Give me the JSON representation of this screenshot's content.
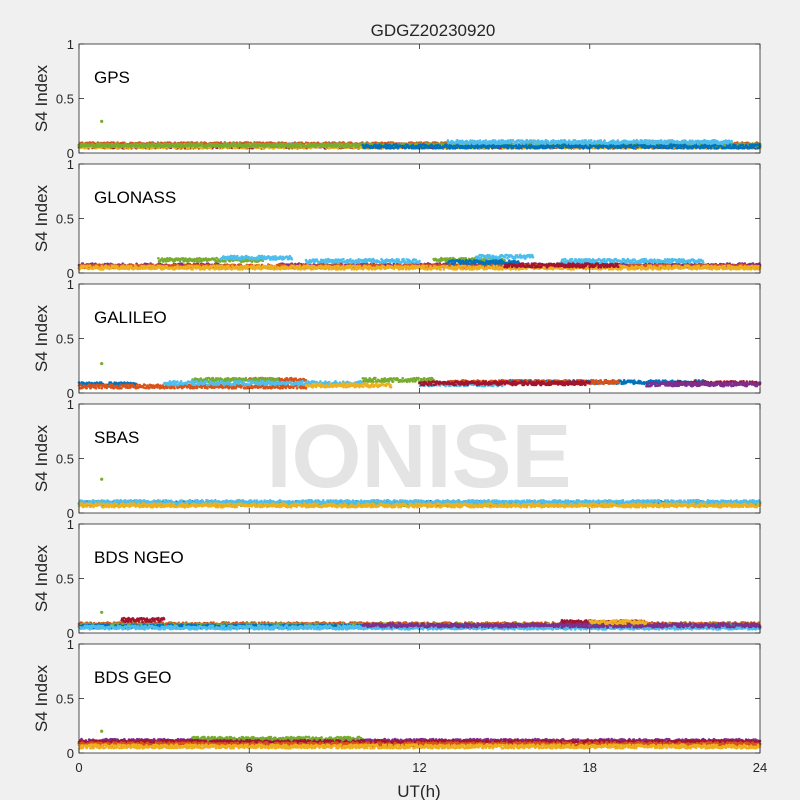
{
  "figure": {
    "title": "GDGZ20230920",
    "xlabel": "UT(h)",
    "ylabel": "S4 Index",
    "watermark": "IONISE",
    "xticks": [
      "0",
      "6",
      "12",
      "18",
      "24"
    ],
    "yticks": [
      "0",
      "0.5",
      "1"
    ]
  },
  "colors": {
    "background": "#f0f0f0",
    "axes_bg": "#ffffff",
    "series": [
      "#0072bd",
      "#d95319",
      "#edb120",
      "#7e2f8e",
      "#77ac30",
      "#4dbeee",
      "#a2142f"
    ]
  },
  "chart_data": [
    {
      "type": "scatter",
      "panel_label": "GPS",
      "xlim": [
        0,
        24
      ],
      "ylim": [
        0,
        1
      ],
      "baseline": 0.07,
      "outliers": [
        {
          "x": 0.8,
          "y": 0.29
        }
      ],
      "series": [
        {
          "color_index": 3,
          "segments": [
            [
              0.0,
              24.0,
              0.07
            ]
          ]
        },
        {
          "color_index": 6,
          "segments": [
            [
              0.0,
              24.0,
              0.06
            ]
          ]
        },
        {
          "color_index": 1,
          "segments": [
            [
              0.0,
              24.0,
              0.08
            ]
          ]
        },
        {
          "color_index": 2,
          "segments": [
            [
              0.0,
              24.0,
              0.06
            ]
          ]
        },
        {
          "color_index": 4,
          "segments": [
            [
              0.0,
              24.0,
              0.07
            ]
          ]
        },
        {
          "color_index": 0,
          "segments": [
            [
              10.0,
              24.0,
              0.06
            ]
          ]
        },
        {
          "color_index": 5,
          "segments": [
            [
              13.0,
              23.0,
              0.1
            ]
          ]
        }
      ]
    },
    {
      "type": "scatter",
      "panel_label": "GLONASS",
      "xlim": [
        0,
        24
      ],
      "ylim": [
        0,
        1
      ],
      "baseline": 0.07,
      "outliers": [],
      "series": [
        {
          "color_index": 3,
          "segments": [
            [
              0.0,
              5.0,
              0.07
            ],
            [
              7.0,
              24.0,
              0.07
            ]
          ]
        },
        {
          "color_index": 1,
          "segments": [
            [
              0.0,
              24.0,
              0.06
            ]
          ]
        },
        {
          "color_index": 2,
          "segments": [
            [
              0.0,
              24.0,
              0.05
            ]
          ]
        },
        {
          "color_index": 4,
          "segments": [
            [
              2.8,
              6.5,
              0.12
            ],
            [
              12.5,
              15.0,
              0.12
            ]
          ]
        },
        {
          "color_index": 5,
          "segments": [
            [
              5.0,
              7.5,
              0.14
            ],
            [
              8.0,
              12.0,
              0.11
            ],
            [
              14.0,
              16.0,
              0.15
            ],
            [
              17.0,
              22.0,
              0.11
            ]
          ]
        },
        {
          "color_index": 0,
          "segments": [
            [
              13.0,
              15.5,
              0.1
            ]
          ]
        },
        {
          "color_index": 6,
          "segments": [
            [
              15.0,
              19.0,
              0.07
            ]
          ]
        }
      ]
    },
    {
      "type": "scatter",
      "panel_label": "GALILEO",
      "xlim": [
        0,
        24
      ],
      "ylim": [
        0,
        1
      ],
      "baseline": 0.07,
      "outliers": [
        {
          "x": 0.8,
          "y": 0.27
        }
      ],
      "series": [
        {
          "color_index": 0,
          "segments": [
            [
              0.0,
              2.0,
              0.08
            ],
            [
              15.0,
              22.0,
              0.1
            ]
          ]
        },
        {
          "color_index": 1,
          "segments": [
            [
              0.0,
              8.0,
              0.06
            ],
            [
              6.0,
              8.0,
              0.12
            ],
            [
              13.0,
              19.0,
              0.1
            ]
          ]
        },
        {
          "color_index": 4,
          "segments": [
            [
              4.0,
              7.0,
              0.12
            ],
            [
              10.0,
              12.5,
              0.12
            ]
          ]
        },
        {
          "color_index": 5,
          "segments": [
            [
              3.0,
              10.0,
              0.09
            ],
            [
              12.0,
              15.0,
              0.08
            ]
          ]
        },
        {
          "color_index": 6,
          "segments": [
            [
              12.0,
              18.0,
              0.09
            ],
            [
              21.0,
              24.0,
              0.09
            ]
          ]
        },
        {
          "color_index": 3,
          "segments": [
            [
              20.0,
              24.0,
              0.08
            ]
          ]
        },
        {
          "color_index": 2,
          "segments": [
            [
              8.0,
              11.0,
              0.07
            ]
          ]
        }
      ]
    },
    {
      "type": "scatter",
      "panel_label": "SBAS",
      "xlim": [
        0,
        24
      ],
      "ylim": [
        0,
        1
      ],
      "baseline": 0.08,
      "outliers": [
        {
          "x": 0.8,
          "y": 0.31
        }
      ],
      "series": [
        {
          "color_index": 0,
          "segments": [
            [
              0.0,
              24.0,
              0.09
            ]
          ]
        },
        {
          "color_index": 4,
          "segments": [
            [
              0.0,
              24.0,
              0.08
            ]
          ]
        },
        {
          "color_index": 5,
          "segments": [
            [
              0.0,
              24.0,
              0.1
            ]
          ]
        },
        {
          "color_index": 2,
          "segments": [
            [
              0.0,
              24.0,
              0.07
            ]
          ]
        }
      ]
    },
    {
      "type": "scatter",
      "panel_label": "BDS NGEO",
      "xlim": [
        0,
        24
      ],
      "ylim": [
        0,
        1
      ],
      "baseline": 0.07,
      "outliers": [
        {
          "x": 0.8,
          "y": 0.19
        }
      ],
      "series": [
        {
          "color_index": 1,
          "segments": [
            [
              0.0,
              24.0,
              0.08
            ]
          ]
        },
        {
          "color_index": 4,
          "segments": [
            [
              0.0,
              24.0,
              0.07
            ]
          ]
        },
        {
          "color_index": 0,
          "segments": [
            [
              0.0,
              24.0,
              0.06
            ]
          ]
        },
        {
          "color_index": 5,
          "segments": [
            [
              0.0,
              24.0,
              0.05
            ]
          ]
        },
        {
          "color_index": 6,
          "segments": [
            [
              1.5,
              3.0,
              0.12
            ],
            [
              17.0,
              20.0,
              0.1
            ]
          ]
        },
        {
          "color_index": 3,
          "segments": [
            [
              10.0,
              24.0,
              0.07
            ]
          ]
        },
        {
          "color_index": 2,
          "segments": [
            [
              18.0,
              20.0,
              0.1
            ]
          ]
        }
      ]
    },
    {
      "type": "scatter",
      "panel_label": "BDS GEO",
      "xlim": [
        0,
        24
      ],
      "ylim": [
        0,
        1
      ],
      "baseline": 0.08,
      "outliers": [
        {
          "x": 0.8,
          "y": 0.2
        }
      ],
      "series": [
        {
          "color_index": 3,
          "segments": [
            [
              0.0,
              24.0,
              0.11
            ]
          ]
        },
        {
          "color_index": 4,
          "segments": [
            [
              4.0,
              10.0,
              0.13
            ]
          ]
        },
        {
          "color_index": 6,
          "segments": [
            [
              0.0,
              24.0,
              0.1
            ]
          ]
        },
        {
          "color_index": 1,
          "segments": [
            [
              0.0,
              24.0,
              0.08
            ]
          ]
        },
        {
          "color_index": 2,
          "segments": [
            [
              0.0,
              24.0,
              0.06
            ]
          ]
        }
      ]
    }
  ]
}
